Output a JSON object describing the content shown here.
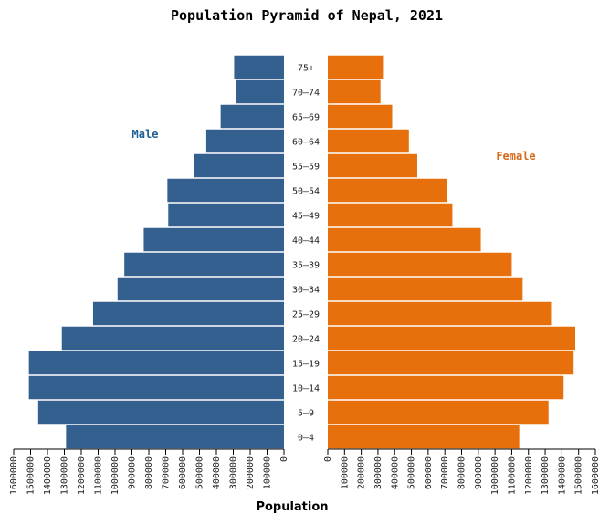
{
  "chart_data": {
    "type": "bar",
    "orientation": "horizontal",
    "title": "Population Pyramid of Nepal, 2021",
    "xlabel": "Population",
    "categories": [
      "0–4",
      "5–9",
      "10–14",
      "15–19",
      "20–24",
      "25–29",
      "30–34",
      "35–39",
      "40–44",
      "45–49",
      "50–54",
      "55–59",
      "60–64",
      "65–69",
      "70–74",
      "75+"
    ],
    "series": [
      {
        "name": "Male",
        "color": "#34608f",
        "values": [
          1290000,
          1455000,
          1510000,
          1510000,
          1315000,
          1130000,
          985000,
          945000,
          830000,
          685000,
          690000,
          535000,
          460000,
          375000,
          285000,
          295000
        ]
      },
      {
        "name": "Female",
        "color": "#e8700c",
        "values": [
          1145000,
          1320000,
          1410000,
          1470000,
          1480000,
          1335000,
          1165000,
          1100000,
          915000,
          745000,
          715000,
          535000,
          485000,
          385000,
          315000,
          330000
        ]
      }
    ],
    "xlim": [
      0,
      1600000
    ],
    "xticks": [
      "0",
      "100000",
      "200000",
      "300000",
      "400000",
      "500000",
      "600000",
      "700000",
      "800000",
      "900000",
      "1000000",
      "1100000",
      "1200000",
      "1300000",
      "1400000",
      "1500000",
      "1600000"
    ],
    "legend": {
      "male": "Male",
      "female": "Female"
    },
    "legend_colors": {
      "male": "#1f5e96",
      "female": "#d9691a"
    }
  }
}
